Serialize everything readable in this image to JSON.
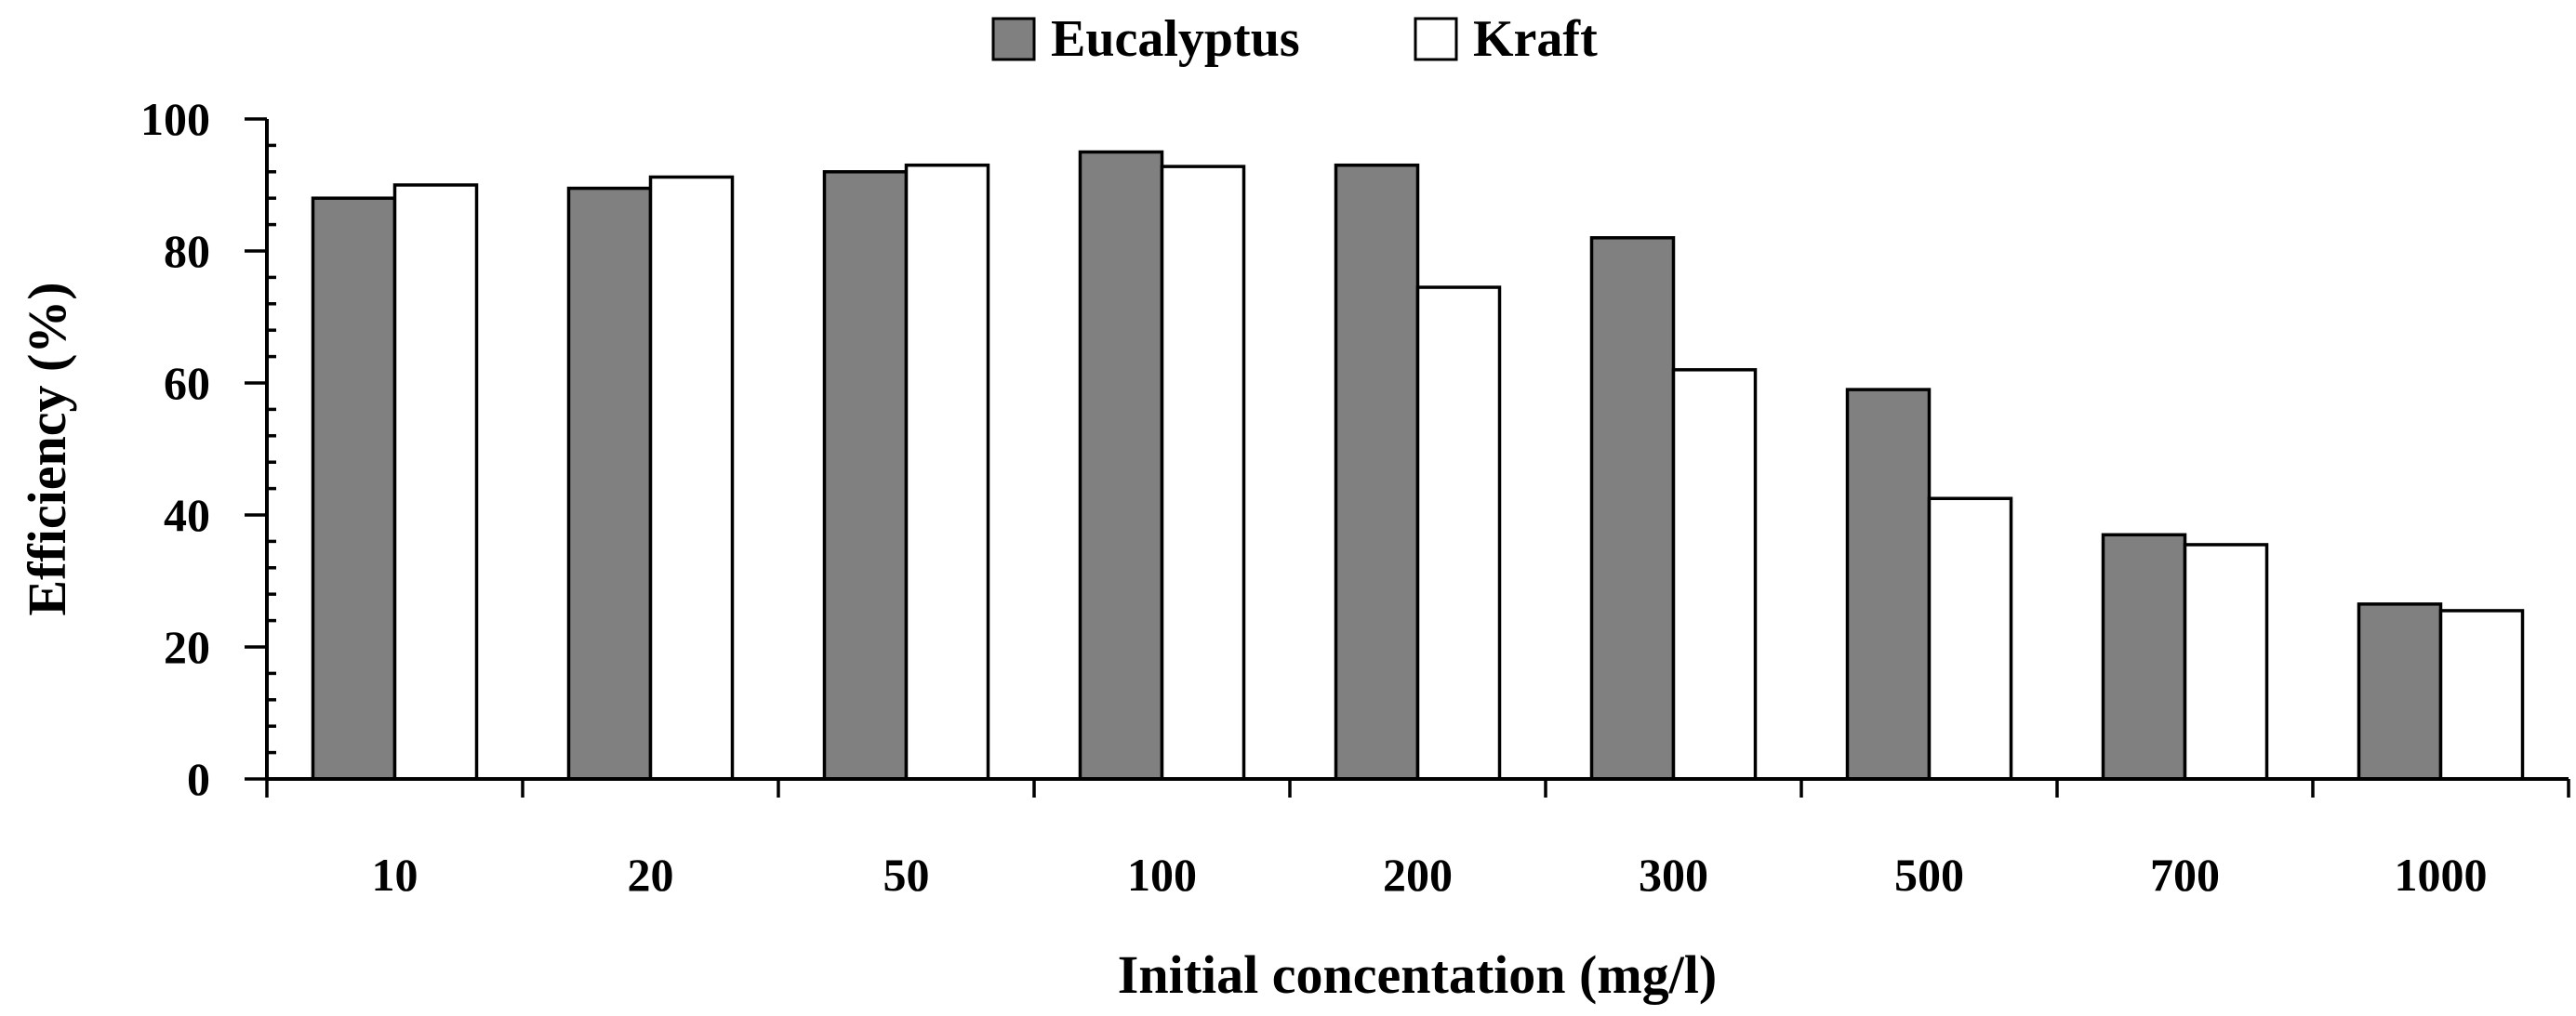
{
  "chart_data": {
    "type": "bar",
    "xlabel": "Initial concentation (mg/l)",
    "ylabel": "Efficiency (%)",
    "ylim": [
      0,
      100
    ],
    "yticks": [
      0,
      20,
      40,
      60,
      80,
      100
    ],
    "legend_position": "top-center",
    "grid": false,
    "categories": [
      "10",
      "20",
      "50",
      "100",
      "200",
      "300",
      "500",
      "700",
      "1000"
    ],
    "series": [
      {
        "name": "Eucalyptus",
        "color": "#808080",
        "values": [
          88,
          89.5,
          92,
          95,
          93,
          82,
          59,
          37,
          26.5
        ]
      },
      {
        "name": "Kraft",
        "color": "#ffffff",
        "values": [
          90,
          91.2,
          93,
          92.8,
          74.5,
          62,
          42.5,
          35.5,
          25.5
        ]
      }
    ]
  }
}
